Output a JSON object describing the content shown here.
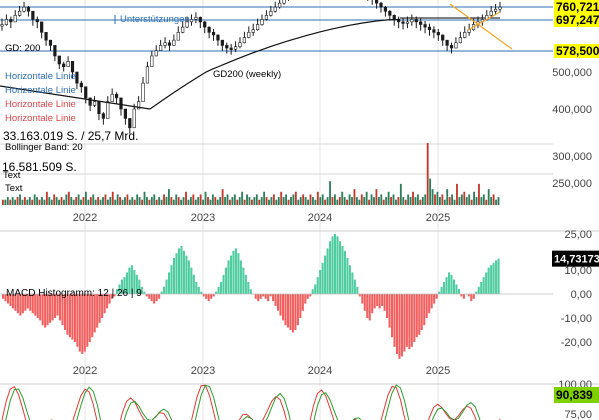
{
  "chart_data": [
    {
      "type": "line",
      "name": "price",
      "y_axis_labels": [
        "500,000",
        "400,000",
        "300,000",
        "250,000"
      ],
      "y_axis_values": [
        500000,
        400000,
        300000,
        250000
      ],
      "x_axis_labels": [
        "2022",
        "2023",
        "2024",
        "2025"
      ],
      "price_tags": [
        {
          "label": "760,721",
          "value": 760721,
          "bg": "#ffff00"
        },
        {
          "label": "697,247",
          "value": 697247,
          "bg": "#ffff00"
        },
        {
          "label": "578,500",
          "value": 578500,
          "bg": "#ffff00"
        }
      ],
      "annotations": [
        {
          "text": "Unterstützungen",
          "color": "#2e6fb5"
        },
        {
          "text": "GD: 200",
          "color": "#000000"
        },
        {
          "text": "GD200 (weekly)",
          "color": "#000000"
        },
        {
          "text": "Horizontale Linie",
          "color": "#2e6fb5"
        },
        {
          "text": "Horizontale Linie",
          "color": "#2e6fb5"
        },
        {
          "text": "Horizontale Linie",
          "color": "#e0474c"
        },
        {
          "text": "Horizontale Linie",
          "color": "#e0474c"
        },
        {
          "text": "33.163.019 S. / 25,7 Mrd.",
          "color": "#000000"
        },
        {
          "text": "Bollinger Band: 20",
          "color": "#000000"
        },
        {
          "text": "16.581.509 S.",
          "color": "#000000"
        },
        {
          "text": "Text",
          "color": "#000000"
        },
        {
          "text": "Text",
          "color": "#000000"
        }
      ],
      "horizontal_lines": [
        760721,
        697247,
        578500
      ]
    },
    {
      "type": "bar",
      "name": "volume",
      "title": "",
      "values": [
        2,
        2,
        3,
        2,
        3,
        2,
        3,
        4,
        2,
        3,
        2,
        3,
        2,
        4,
        3,
        2,
        3,
        2,
        5,
        3,
        2,
        4,
        3,
        2,
        3,
        2,
        4,
        5,
        3,
        2,
        3,
        4,
        2,
        3,
        5,
        2,
        3,
        4,
        2,
        3,
        2,
        3,
        4,
        2,
        3,
        5,
        2,
        4,
        3,
        2,
        3,
        4,
        2,
        3,
        2,
        4,
        3,
        2,
        5,
        3,
        2,
        3,
        4,
        2,
        3,
        2,
        4,
        3,
        6,
        3,
        2,
        4,
        3,
        2,
        3,
        5,
        2,
        3,
        4,
        2,
        3,
        4,
        2,
        5,
        3,
        2,
        4,
        3,
        2,
        3,
        6,
        3,
        4,
        2,
        3,
        4,
        2,
        3,
        5,
        2,
        4,
        3,
        2,
        3,
        4,
        2,
        3,
        5,
        3,
        2,
        3,
        4,
        2,
        3,
        5,
        3,
        4,
        2,
        3,
        4,
        5,
        2,
        3,
        4,
        3,
        2,
        4,
        3,
        2,
        5,
        3,
        4,
        2,
        3,
        9,
        3,
        4,
        2,
        3,
        5,
        3,
        2,
        4,
        3,
        6,
        3,
        2,
        4,
        3,
        5,
        2,
        4,
        3,
        6,
        3,
        4,
        2,
        3,
        5,
        3,
        4,
        2,
        3,
        8,
        3,
        2,
        4,
        3,
        5,
        3,
        4,
        2,
        3,
        4,
        28,
        10,
        6,
        4,
        5,
        3,
        4,
        2,
        6,
        3,
        4,
        2,
        8,
        3,
        4,
        5,
        3,
        4,
        2,
        5,
        3,
        8,
        3,
        4,
        2,
        6,
        3,
        4,
        2,
        3
      ]
    },
    {
      "type": "bar",
      "name": "MACD Histogramm",
      "title": "MACD Histogramm: 12 | 26 | 9",
      "y_axis_labels": [
        "25,00",
        "10,00",
        "0,00",
        "-10,00",
        "-20,00"
      ],
      "y_axis_values": [
        25,
        10,
        0,
        -10,
        -20
      ],
      "x_axis_labels": [
        "2022",
        "2023",
        "2024",
        "2025"
      ],
      "last_value_label": "14,73173",
      "ylim": [
        -27,
        27
      ],
      "values": [
        -2,
        -3,
        -4,
        -5,
        -6,
        -7,
        -8,
        -9,
        -8,
        -7,
        -6,
        -7,
        -8,
        -9,
        -10,
        -11,
        -13,
        -14,
        -13,
        -12,
        -11,
        -10,
        -9,
        -11,
        -13,
        -15,
        -17,
        -18,
        -19,
        -20,
        -22,
        -24,
        -25,
        -24,
        -22,
        -20,
        -18,
        -16,
        -14,
        -12,
        -10,
        -8,
        -6,
        -4,
        -2,
        -1,
        2,
        4,
        6,
        7,
        9,
        11,
        12,
        10,
        8,
        6,
        3,
        1,
        -1,
        -2,
        -3,
        -4,
        -3,
        -2,
        1,
        3,
        6,
        9,
        12,
        15,
        17,
        19,
        20,
        18,
        16,
        14,
        11,
        8,
        5,
        3,
        1,
        -1,
        -2,
        -3,
        -2,
        -1,
        1,
        3,
        5,
        8,
        11,
        14,
        16,
        18,
        19,
        17,
        14,
        11,
        8,
        5,
        2,
        0,
        -2,
        -3,
        -2,
        -1,
        -2,
        -3,
        -1,
        -3,
        -5,
        -7,
        -9,
        -11,
        -13,
        -14,
        -15,
        -16,
        -15,
        -13,
        -10,
        -7,
        -4,
        -2,
        -1,
        2,
        4,
        7,
        10,
        13,
        16,
        19,
        22,
        24,
        25,
        24,
        22,
        20,
        18,
        15,
        12,
        9,
        6,
        3,
        -1,
        -4,
        -7,
        -10,
        -11,
        -8,
        -6,
        -5,
        -6,
        -5,
        -7,
        -10,
        -14,
        -18,
        -22,
        -25,
        -27,
        -26,
        -24,
        -22,
        -23,
        -22,
        -20,
        -18,
        -17,
        -15,
        -13,
        -10,
        -8,
        -6,
        -4,
        -2,
        1,
        3,
        5,
        7,
        9,
        8,
        6,
        4,
        2,
        -1,
        -2,
        0,
        -1,
        -3,
        -2,
        1,
        3,
        5,
        7,
        9,
        11,
        12,
        13,
        14,
        14.73
      ]
    },
    {
      "type": "line",
      "name": "stochastic",
      "y_axis_labels": [
        "100,00",
        "75,00"
      ],
      "y_axis_values": [
        100,
        75
      ],
      "last_value_label": "90,839"
    }
  ],
  "colors": {
    "candle_body": "#1b1b1b",
    "volume_up": "#2e7d5b",
    "volume_down": "#c0392b",
    "macd_positive": "#4fcca0",
    "macd_negative": "#f25f5f",
    "support_line": "#2e6fb5",
    "label_bg": "#ffff00",
    "macd_label_bg": "#000000",
    "macd_label_fg": "#ffffff",
    "macd_last_bg": "#000000",
    "stoch_label_bg": "#7fd000",
    "stoch_red": "#e53935",
    "stoch_green": "#2e9d2e",
    "gd200_line": "#111111",
    "trend_orange": "#f5a623"
  }
}
